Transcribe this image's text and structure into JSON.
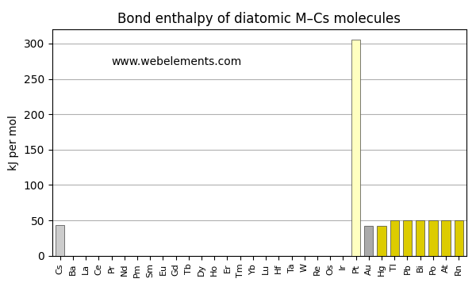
{
  "chart_data": {
    "type": "bar",
    "title": "Bond enthalpy of diatomic M–Cs molecules",
    "y_label": "kJ per mol",
    "categories": [
      "Cs",
      "Ba",
      "La",
      "Ce",
      "Pr",
      "Nd",
      "Pm",
      "Sm",
      "Eu",
      "Gd",
      "Tb",
      "Dy",
      "Ho",
      "Er",
      "Tm",
      "Yb",
      "Lu",
      "Hf",
      "Ta",
      "W",
      "Re",
      "Os",
      "Ir",
      "Pt",
      "Au",
      "Hg",
      "Tl",
      "Pb",
      "Bi",
      "Po",
      "At",
      "Rn"
    ],
    "values": [
      43,
      0,
      0,
      0,
      0,
      0,
      0,
      0,
      0,
      0,
      0,
      0,
      0,
      0,
      0,
      0,
      0,
      0,
      0,
      0,
      0,
      0,
      0,
      305,
      42,
      42,
      50,
      50,
      50,
      50,
      50,
      50
    ],
    "colors": [
      "#cccccc",
      "#22bb22",
      "#22bb22",
      "#22bb22",
      "#22bb22",
      "#22bb22",
      "#22bb22",
      "#22bb22",
      "#22bb22",
      "#22bb22",
      "#22bb22",
      "#22bb22",
      "#22bb22",
      "#22bb22",
      "#22bb22",
      "#22bb22",
      "#22bb22",
      "#cc2222",
      "#cc2222",
      "#cc2222",
      "#cc2222",
      "#cc2222",
      "#cc2222",
      "#ffffc0",
      "#aaaaaa",
      "#ddcc00",
      "#ddcc00",
      "#ddcc00",
      "#ddcc00",
      "#ddcc00",
      "#ddcc00",
      "#ddcc00"
    ],
    "ylim": [
      0,
      320
    ],
    "yticks": [
      0,
      50,
      100,
      150,
      200,
      250,
      300
    ],
    "grid": true,
    "annotation": "www.webelements.com"
  }
}
